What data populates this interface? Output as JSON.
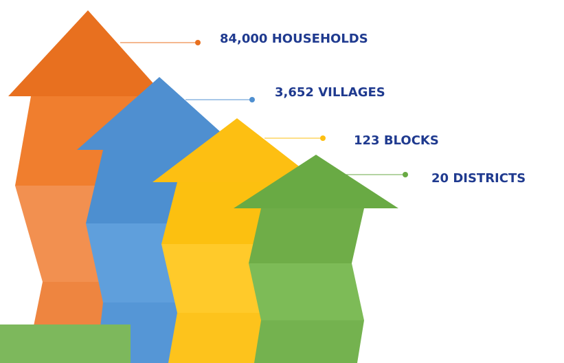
{
  "callouts": [
    {
      "label": "84,000 HOUSEHOLDS"
    },
    {
      "label": "3,652 VILLAGES"
    },
    {
      "label": "123 BLOCKS"
    },
    {
      "label": "20 DISTRICTS"
    }
  ]
}
